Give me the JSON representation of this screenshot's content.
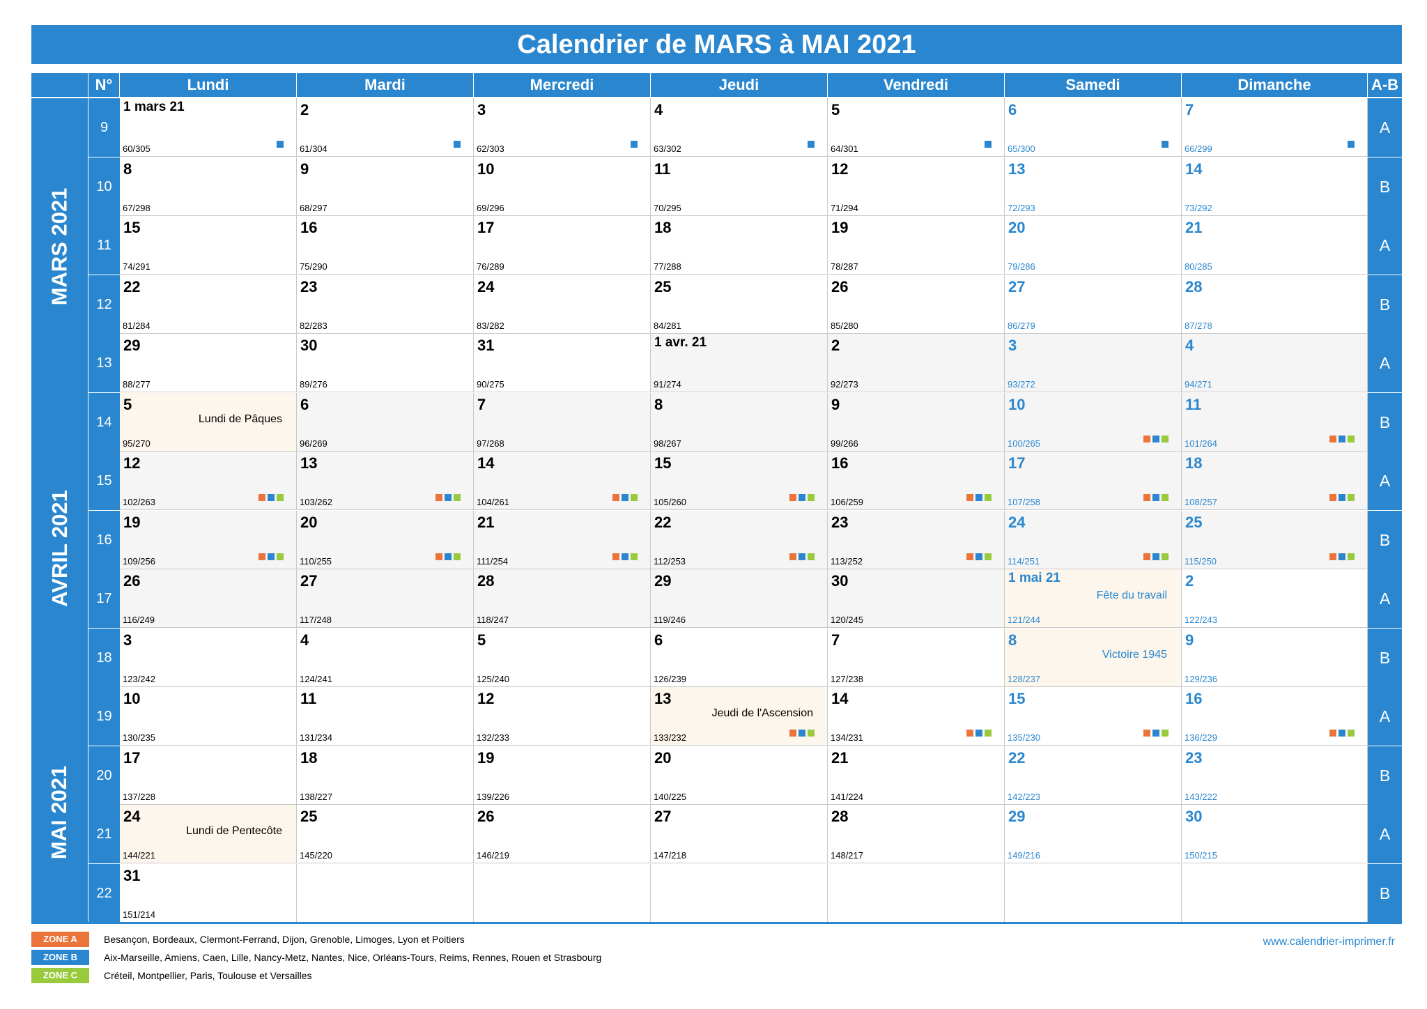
{
  "title": "Calendrier de MARS à MAI 2021",
  "colors": {
    "primary": "#2a87cf",
    "zone_a": "#ea7439",
    "zone_b": "#2a87cf",
    "zone_c": "#99c93c",
    "weekday_shade": "#f5f5f5",
    "holiday_bg": "#fdf6ec"
  },
  "headers": {
    "week": "N°",
    "days": [
      "Lundi",
      "Mardi",
      "Mercredi",
      "Jeudi",
      "Vendredi",
      "Samedi",
      "Dimanche"
    ],
    "ab": "A-B"
  },
  "months": [
    "MARS 2021",
    "AVRIL 2021",
    "MAI 2021"
  ],
  "weeks": [
    {
      "num": "9",
      "ab": "A",
      "days": [
        {
          "label": "1 mars 21",
          "count": "60/305",
          "marks": [
            "b"
          ]
        },
        {
          "label": "2",
          "count": "61/304",
          "marks": [
            "b"
          ]
        },
        {
          "label": "3",
          "count": "62/303",
          "marks": [
            "b"
          ]
        },
        {
          "label": "4",
          "count": "63/302",
          "marks": [
            "b"
          ]
        },
        {
          "label": "5",
          "count": "64/301",
          "marks": [
            "b"
          ]
        },
        {
          "label": "6",
          "count": "65/300",
          "marks": [
            "b"
          ]
        },
        {
          "label": "7",
          "count": "66/299",
          "marks": [
            "b"
          ]
        }
      ]
    },
    {
      "num": "10",
      "ab": "B",
      "days": [
        {
          "label": "8",
          "count": "67/298"
        },
        {
          "label": "9",
          "count": "68/297"
        },
        {
          "label": "10",
          "count": "69/296"
        },
        {
          "label": "11",
          "count": "70/295"
        },
        {
          "label": "12",
          "count": "71/294"
        },
        {
          "label": "13",
          "count": "72/293"
        },
        {
          "label": "14",
          "count": "73/292"
        }
      ]
    },
    {
      "num": "11",
      "ab": "A",
      "days": [
        {
          "label": "15",
          "count": "74/291"
        },
        {
          "label": "16",
          "count": "75/290"
        },
        {
          "label": "17",
          "count": "76/289"
        },
        {
          "label": "18",
          "count": "77/288"
        },
        {
          "label": "19",
          "count": "78/287"
        },
        {
          "label": "20",
          "count": "79/286"
        },
        {
          "label": "21",
          "count": "80/285"
        }
      ]
    },
    {
      "num": "12",
      "ab": "B",
      "days": [
        {
          "label": "22",
          "count": "81/284"
        },
        {
          "label": "23",
          "count": "82/283"
        },
        {
          "label": "24",
          "count": "83/282"
        },
        {
          "label": "25",
          "count": "84/281"
        },
        {
          "label": "26",
          "count": "85/280"
        },
        {
          "label": "27",
          "count": "86/279"
        },
        {
          "label": "28",
          "count": "87/278"
        }
      ]
    },
    {
      "num": "13",
      "ab": "A",
      "days": [
        {
          "label": "29",
          "count": "88/277"
        },
        {
          "label": "30",
          "count": "89/276"
        },
        {
          "label": "31",
          "count": "90/275"
        },
        {
          "label": "1 avr. 21",
          "count": "91/274",
          "shade": true
        },
        {
          "label": "2",
          "count": "92/273",
          "shade": true
        },
        {
          "label": "3",
          "count": "93/272",
          "shade": true
        },
        {
          "label": "4",
          "count": "94/271",
          "shade": true
        }
      ]
    },
    {
      "num": "14",
      "ab": "B",
      "days": [
        {
          "label": "5",
          "count": "95/270",
          "holiday": "Lundi de Pâques"
        },
        {
          "label": "6",
          "count": "96/269",
          "shade": true
        },
        {
          "label": "7",
          "count": "97/268",
          "shade": true
        },
        {
          "label": "8",
          "count": "98/267",
          "shade": true
        },
        {
          "label": "9",
          "count": "99/266",
          "shade": true
        },
        {
          "label": "10",
          "count": "100/265",
          "shade": true,
          "marks": [
            "a",
            "b",
            "c"
          ]
        },
        {
          "label": "11",
          "count": "101/264",
          "shade": true,
          "marks": [
            "a",
            "b",
            "c"
          ]
        }
      ]
    },
    {
      "num": "15",
      "ab": "A",
      "days": [
        {
          "label": "12",
          "count": "102/263",
          "shade": true,
          "marks": [
            "a",
            "b",
            "c"
          ]
        },
        {
          "label": "13",
          "count": "103/262",
          "shade": true,
          "marks": [
            "a",
            "b",
            "c"
          ]
        },
        {
          "label": "14",
          "count": "104/261",
          "shade": true,
          "marks": [
            "a",
            "b",
            "c"
          ]
        },
        {
          "label": "15",
          "count": "105/260",
          "shade": true,
          "marks": [
            "a",
            "b",
            "c"
          ]
        },
        {
          "label": "16",
          "count": "106/259",
          "shade": true,
          "marks": [
            "a",
            "b",
            "c"
          ]
        },
        {
          "label": "17",
          "count": "107/258",
          "shade": true,
          "marks": [
            "a",
            "b",
            "c"
          ]
        },
        {
          "label": "18",
          "count": "108/257",
          "shade": true,
          "marks": [
            "a",
            "b",
            "c"
          ]
        }
      ]
    },
    {
      "num": "16",
      "ab": "B",
      "days": [
        {
          "label": "19",
          "count": "109/256",
          "shade": true,
          "marks": [
            "a",
            "b",
            "c"
          ]
        },
        {
          "label": "20",
          "count": "110/255",
          "shade": true,
          "marks": [
            "a",
            "b",
            "c"
          ]
        },
        {
          "label": "21",
          "count": "111/254",
          "shade": true,
          "marks": [
            "a",
            "b",
            "c"
          ]
        },
        {
          "label": "22",
          "count": "112/253",
          "shade": true,
          "marks": [
            "a",
            "b",
            "c"
          ]
        },
        {
          "label": "23",
          "count": "113/252",
          "shade": true,
          "marks": [
            "a",
            "b",
            "c"
          ]
        },
        {
          "label": "24",
          "count": "114/251",
          "shade": true,
          "marks": [
            "a",
            "b",
            "c"
          ]
        },
        {
          "label": "25",
          "count": "115/250",
          "shade": true,
          "marks": [
            "a",
            "b",
            "c"
          ]
        }
      ]
    },
    {
      "num": "17",
      "ab": "A",
      "days": [
        {
          "label": "26",
          "count": "116/249",
          "shade": true
        },
        {
          "label": "27",
          "count": "117/248",
          "shade": true
        },
        {
          "label": "28",
          "count": "118/247",
          "shade": true
        },
        {
          "label": "29",
          "count": "119/246",
          "shade": true
        },
        {
          "label": "30",
          "count": "120/245",
          "shade": true
        },
        {
          "label": "1 mai 21",
          "count": "121/244",
          "holiday": "Fête du travail"
        },
        {
          "label": "2",
          "count": "122/243"
        }
      ]
    },
    {
      "num": "18",
      "ab": "B",
      "days": [
        {
          "label": "3",
          "count": "123/242"
        },
        {
          "label": "4",
          "count": "124/241"
        },
        {
          "label": "5",
          "count": "125/240"
        },
        {
          "label": "6",
          "count": "126/239"
        },
        {
          "label": "7",
          "count": "127/238"
        },
        {
          "label": "8",
          "count": "128/237",
          "holiday": "Victoire 1945"
        },
        {
          "label": "9",
          "count": "129/236"
        }
      ]
    },
    {
      "num": "19",
      "ab": "A",
      "days": [
        {
          "label": "10",
          "count": "130/235"
        },
        {
          "label": "11",
          "count": "131/234"
        },
        {
          "label": "12",
          "count": "132/233"
        },
        {
          "label": "13",
          "count": "133/232",
          "holiday": "Jeudi de l'Ascension",
          "marks": [
            "a",
            "b",
            "c"
          ]
        },
        {
          "label": "14",
          "count": "134/231",
          "marks": [
            "a",
            "b",
            "c"
          ]
        },
        {
          "label": "15",
          "count": "135/230",
          "marks": [
            "a",
            "b",
            "c"
          ]
        },
        {
          "label": "16",
          "count": "136/229",
          "marks": [
            "a",
            "b",
            "c"
          ]
        }
      ]
    },
    {
      "num": "20",
      "ab": "B",
      "days": [
        {
          "label": "17",
          "count": "137/228"
        },
        {
          "label": "18",
          "count": "138/227"
        },
        {
          "label": "19",
          "count": "139/226"
        },
        {
          "label": "20",
          "count": "140/225"
        },
        {
          "label": "21",
          "count": "141/224"
        },
        {
          "label": "22",
          "count": "142/223"
        },
        {
          "label": "23",
          "count": "143/222"
        }
      ]
    },
    {
      "num": "21",
      "ab": "A",
      "days": [
        {
          "label": "24",
          "count": "144/221",
          "holiday": "Lundi de Pentecôte"
        },
        {
          "label": "25",
          "count": "145/220"
        },
        {
          "label": "26",
          "count": "146/219"
        },
        {
          "label": "27",
          "count": "147/218"
        },
        {
          "label": "28",
          "count": "148/217"
        },
        {
          "label": "29",
          "count": "149/216"
        },
        {
          "label": "30",
          "count": "150/215"
        }
      ]
    },
    {
      "num": "22",
      "ab": "B",
      "days": [
        {
          "label": "31",
          "count": "151/214"
        },
        {},
        {},
        {},
        {},
        {},
        {}
      ]
    }
  ],
  "legend": [
    {
      "zone": "ZONE A",
      "cls": "a",
      "text": "Besançon, Bordeaux, Clermont-Ferrand, Dijon, Grenoble, Limoges, Lyon et Poitiers"
    },
    {
      "zone": "ZONE B",
      "cls": "b",
      "text": "Aix-Marseille, Amiens, Caen, Lille, Nancy-Metz, Nantes, Nice, Orléans-Tours, Reims, Rennes, Rouen et Strasbourg"
    },
    {
      "zone": "ZONE C",
      "cls": "c",
      "text": "Créteil, Montpellier, Paris, Toulouse et Versailles"
    }
  ],
  "website": "www.calendrier-imprimer.fr"
}
